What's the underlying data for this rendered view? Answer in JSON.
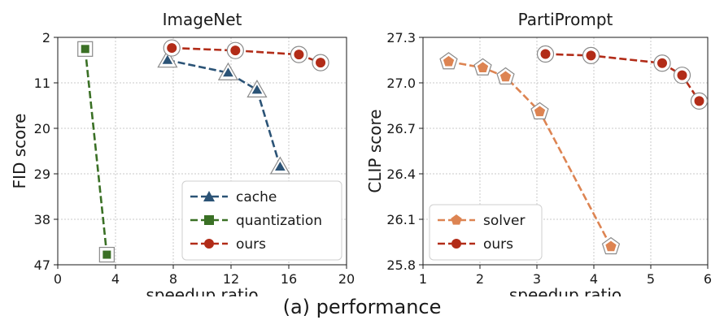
{
  "figure": {
    "caption": "(a) performance"
  },
  "chart_data": [
    {
      "type": "line",
      "title": "ImageNet",
      "xlabel": "speedup ratio",
      "ylabel": "FID score",
      "xlim": [
        0,
        20
      ],
      "ylim": [
        2,
        47
      ],
      "y_inverted": true,
      "xticks": [
        "0",
        "4",
        "8",
        "12",
        "16",
        "20"
      ],
      "xtick_values": [
        0,
        4,
        8,
        12,
        16,
        20
      ],
      "yticks": [
        "2",
        "11",
        "20",
        "29",
        "38",
        "47"
      ],
      "ytick_values": [
        2,
        11,
        20,
        29,
        38,
        47
      ],
      "grid": true,
      "legend_position": "bottom-right",
      "series": [
        {
          "name": "cache",
          "color": "#2b5376",
          "marker": "triangle",
          "x": [
            7.6,
            11.8,
            13.8,
            15.4
          ],
          "y": [
            6.5,
            9.0,
            12.4,
            27.6
          ]
        },
        {
          "name": "quantization",
          "color": "#3a7025",
          "marker": "square",
          "x": [
            1.9,
            3.4
          ],
          "y": [
            4.3,
            45.0
          ]
        },
        {
          "name": "ours",
          "color": "#b22c18",
          "marker": "circle",
          "x": [
            7.9,
            12.3,
            16.7,
            18.2
          ],
          "y": [
            4.1,
            4.6,
            5.4,
            7.0
          ]
        }
      ]
    },
    {
      "type": "line",
      "title": "PartiPrompt",
      "xlabel": "speedup ratio",
      "ylabel": "CLIP score",
      "xlim": [
        1,
        6
      ],
      "ylim": [
        25.8,
        27.3
      ],
      "xticks": [
        "1",
        "2",
        "3",
        "4",
        "5",
        "6"
      ],
      "xtick_values": [
        1,
        2,
        3,
        4,
        5,
        6
      ],
      "yticks": [
        "25.8",
        "26.1",
        "26.4",
        "26.7",
        "27.0",
        "27.3"
      ],
      "ytick_values": [
        25.8,
        26.1,
        26.4,
        26.7,
        27.0,
        27.3
      ],
      "grid": true,
      "legend_position": "bottom-left",
      "series": [
        {
          "name": "solver",
          "color": "#dd8452",
          "marker": "pentagon",
          "x": [
            1.45,
            2.05,
            2.45,
            3.05,
            4.3
          ],
          "y": [
            27.14,
            27.1,
            27.04,
            26.81,
            25.92
          ]
        },
        {
          "name": "ours",
          "color": "#b22c18",
          "marker": "circle",
          "x": [
            3.15,
            3.95,
            5.2,
            5.55,
            5.85
          ],
          "y": [
            27.19,
            27.18,
            27.13,
            27.05,
            26.88
          ]
        }
      ]
    }
  ]
}
